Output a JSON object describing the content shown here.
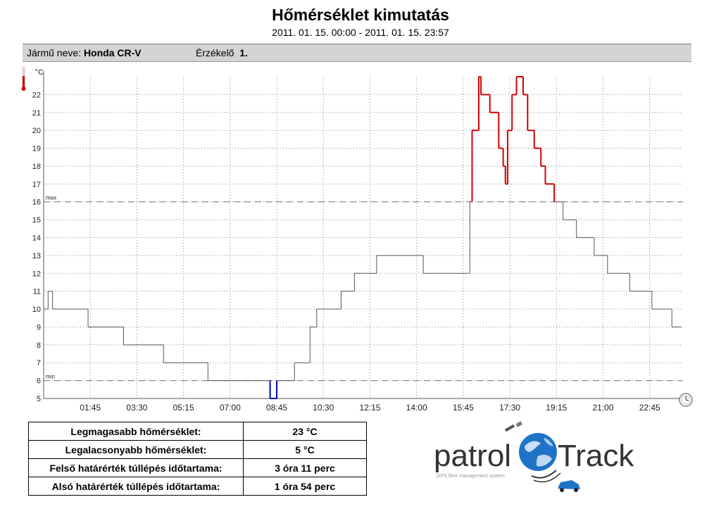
{
  "header": {
    "title": "Hőmérséklet kimutatás",
    "date_range": "2011. 01. 15. 00:00 - 2011. 01. 15. 23:57"
  },
  "info": {
    "vehicle_label": "Jármű neve:",
    "vehicle_value": "Honda CR-V",
    "sensor_label": "Érzékelő",
    "sensor_value": "1."
  },
  "chart_data": {
    "type": "line",
    "y_unit": "°C",
    "ylim": [
      5,
      23
    ],
    "yticks": [
      5,
      6,
      7,
      8,
      9,
      10,
      11,
      12,
      13,
      14,
      15,
      16,
      17,
      18,
      19,
      20,
      21,
      22
    ],
    "xlim_minutes": [
      0,
      1440
    ],
    "xticks": [
      "01:45",
      "03:30",
      "05:15",
      "07:00",
      "08:45",
      "10:30",
      "12:15",
      "14:00",
      "15:45",
      "17:30",
      "19:15",
      "21:00",
      "22:45"
    ],
    "grid": true,
    "thresholds": [
      {
        "name": "max",
        "value": 16
      },
      {
        "name": "min",
        "value": 6
      }
    ],
    "colors": {
      "normal": "#555555",
      "above_max": "#d00000",
      "below_min": "#0000c0",
      "threshold": "#777777",
      "grid": "#888888"
    },
    "series": [
      {
        "x": [
          "00:00",
          "00:10",
          "00:20",
          "01:40",
          "03:00",
          "04:30",
          "06:10",
          "08:30",
          "08:45",
          "09:25",
          "10:00",
          "10:15",
          "10:45",
          "11:10",
          "11:40",
          "12:30",
          "12:45",
          "14:15",
          "14:30",
          "16:00",
          "16:05",
          "16:20",
          "16:25",
          "16:45",
          "17:05",
          "17:15",
          "17:20",
          "17:25",
          "17:35",
          "17:45",
          "18:00",
          "18:10",
          "18:25",
          "18:40",
          "18:50",
          "19:10",
          "19:30",
          "20:00",
          "20:40",
          "21:10",
          "21:20",
          "22:00",
          "22:50",
          "23:35",
          "23:57"
        ],
        "y": [
          10,
          11,
          10,
          9,
          8,
          7,
          6,
          5,
          6,
          7,
          9,
          10,
          10,
          11,
          12,
          13,
          13,
          12,
          12,
          16,
          20,
          23,
          22,
          21,
          19,
          18,
          17,
          20,
          22,
          23,
          22,
          20,
          19,
          18,
          17,
          16,
          15,
          14,
          13,
          12,
          12,
          11,
          10,
          9,
          9
        ]
      }
    ],
    "shape": "step"
  },
  "stats": [
    {
      "label": "Legmagasabb hőmérséklet:",
      "value": "23 °C"
    },
    {
      "label": "Legalacsonyabb hőmérséklet:",
      "value": "5 °C"
    },
    {
      "label": "Felső határérték túllépés időtartama:",
      "value": "3 óra 11 perc"
    },
    {
      "label": "Alsó határérték túllépés időtartama:",
      "value": "1 óra 54 perc"
    }
  ],
  "logo": {
    "word1": "patrol",
    "word2": "Track",
    "tagline": "GPS fleet management system",
    "brand_color": "#333333",
    "globe_color": "#1e73c8"
  }
}
